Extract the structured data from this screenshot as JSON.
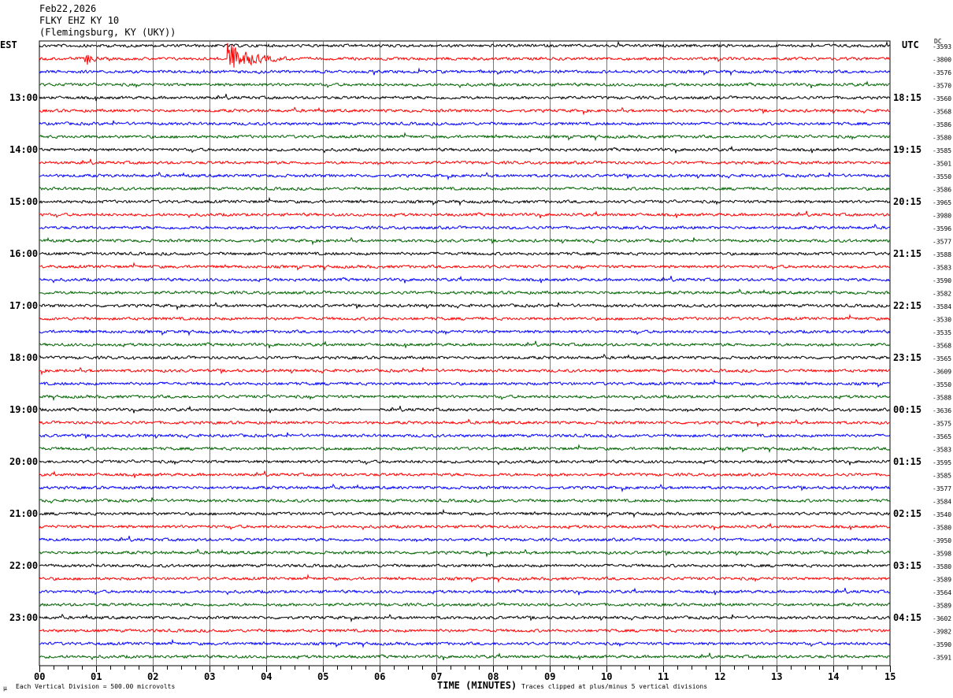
{
  "header": {
    "date": "Feb22,2026",
    "station": "FLKY EHZ KY 10",
    "location": "(Flemingsburg, KY (UKY))"
  },
  "chart_data": {
    "type": "line",
    "subtype": "helicorder",
    "left_timezone": "EST",
    "right_timezone": "UTC",
    "dc_label": "DC",
    "left_hour_labels": [
      "13:00",
      "14:00",
      "15:00",
      "16:00",
      "17:00",
      "18:00",
      "19:00",
      "20:00",
      "21:00",
      "22:00",
      "23:00"
    ],
    "right_hour_labels": [
      "18:15",
      "19:15",
      "20:15",
      "21:15",
      "22:15",
      "23:15",
      "00:15",
      "01:15",
      "02:15",
      "03:15",
      "04:15"
    ],
    "lines_per_hour": 4,
    "trace_colors": [
      "#000000",
      "#ff0000",
      "#0000ff",
      "#006400"
    ],
    "dc_offsets": [
      "-3593",
      "-3800",
      "-3576",
      "-3570",
      "-3560",
      "-3568",
      "-3586",
      "-3580",
      "-3585",
      "-3501",
      "-3550",
      "-3586",
      "-3965",
      "-3980",
      "-3596",
      "-3577",
      "-3588",
      "-3583",
      "-3590",
      "-3582",
      "-3584",
      "-3530",
      "-3535",
      "-3568",
      "-3565",
      "-3609",
      "-3550",
      "-3588",
      "-3636",
      "-3575",
      "-3565",
      "-3583",
      "-3595",
      "-3585",
      "-3577",
      "-3584",
      "-3540",
      "-3580",
      "-3950",
      "-3598",
      "-3580",
      "-3589",
      "-3564",
      "-3589",
      "-3602",
      "-3982",
      "-3590",
      "-3591"
    ],
    "x_ticks": [
      "00",
      "01",
      "02",
      "03",
      "04",
      "05",
      "06",
      "07",
      "08",
      "09",
      "10",
      "11",
      "12",
      "13",
      "14",
      "15"
    ],
    "xlim": [
      0,
      15
    ],
    "xlabel": "TIME (MINUTES)",
    "grid": true,
    "scale_note": "Each Vertical Division =  500.00 microvolts",
    "clip_note": "Traces clipped at plus/minus 5 vertical divisions",
    "events": [
      {
        "line": 1,
        "start_min": 0.8,
        "end_min": 1.1,
        "amplitude": "large"
      },
      {
        "line": 1,
        "start_min": 3.3,
        "end_min": 4.5,
        "amplitude": "clipped"
      }
    ]
  }
}
